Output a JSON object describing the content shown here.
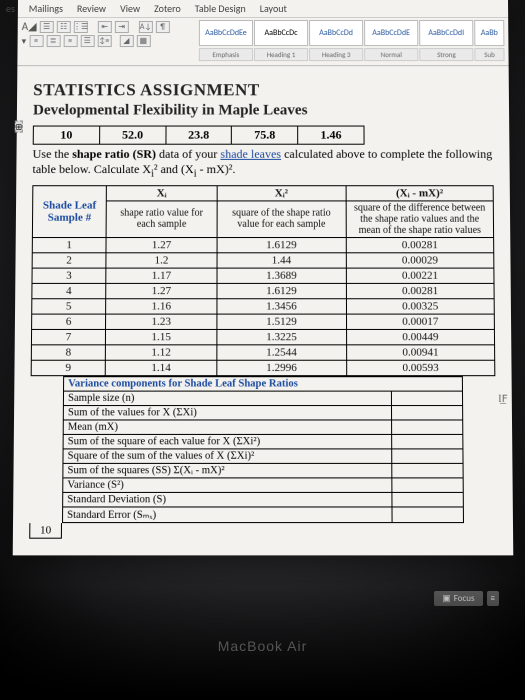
{
  "ribbon": {
    "tabs": [
      "es",
      "Mailings",
      "Review",
      "View",
      "Zotero",
      "Table Design",
      "Layout"
    ],
    "style_samples": [
      "AaBbCcDdEe",
      "AaBbCcDc",
      "AaBbCcDd",
      "AaBbCcDdE",
      "AaBbCcDdI",
      "AaBb"
    ],
    "style_labels": [
      "Emphasis",
      "Heading 1",
      "Heading 3",
      "Normal",
      "Strong",
      "Sub"
    ]
  },
  "doc": {
    "title1": "STATISTICS ASSIGNMENT",
    "title2": "Developmental Flexibility in Maple Leaves",
    "calc_values": [
      "10",
      "52.0",
      "23.8",
      "75.8",
      "1.46"
    ],
    "instruction_a": "Use the ",
    "instruction_b": "shape ratio (SR)",
    "instruction_c": " data of your ",
    "instruction_link": "shade leaves",
    "instruction_d": " calculated above to complete the following table below. Calculate X",
    "instruction_e": " and (X",
    "instruction_f": " - mX)²."
  },
  "table": {
    "h_sample": "Shade Leaf Sample\n#",
    "h_xi": "Xᵢ",
    "h_xi2": "Xᵢ²",
    "h_dev": "(Xᵢ - mX)²",
    "d_xi": "shape ratio value for each sample",
    "d_xi2": "square of the shape ratio value for each sample",
    "d_dev": "square of the difference between the shape ratio values and the mean of the shape ratio values",
    "rows": [
      {
        "n": "1",
        "xi": "1.27",
        "xi2": "1.6129",
        "dev": "0.00281"
      },
      {
        "n": "2",
        "xi": "1.2",
        "xi2": "1.44",
        "dev": "0.00029"
      },
      {
        "n": "3",
        "xi": "1.17",
        "xi2": "1.3689",
        "dev": "0.00221"
      },
      {
        "n": "4",
        "xi": "1.27",
        "xi2": "1.6129",
        "dev": "0.00281"
      },
      {
        "n": "5",
        "xi": "1.16",
        "xi2": "1.3456",
        "dev": "0.00325"
      },
      {
        "n": "6",
        "xi": "1.23",
        "xi2": "1.5129",
        "dev": "0.00017"
      },
      {
        "n": "7",
        "xi": "1.15",
        "xi2": "1.3225",
        "dev": "0.00449"
      },
      {
        "n": "8",
        "xi": "1.12",
        "xi2": "1.2544",
        "dev": "0.00941"
      },
      {
        "n": "9",
        "xi": "1.14",
        "xi2": "1.2996",
        "dev": "0.00593"
      }
    ]
  },
  "summary": {
    "title": "Variance components for Shade Leaf Shape Ratios",
    "rows": [
      "Sample size (n)",
      "Sum of the values for X (ΣXi)",
      "Mean (mX)",
      "Sum of the square of each value for X (ΣXi²)",
      "Square of the sum of the values of X (ΣXi)²",
      "Sum of the squares (SS) Σ(Xᵢ - mX)²",
      "Variance (S²)",
      "Standard Deviation (S)",
      "Standard Error (Sₘₓ)"
    ],
    "last_n": "10"
  },
  "status": {
    "focus": "Focus"
  },
  "device": "MacBook Air",
  "if_mark": "I͟F"
}
